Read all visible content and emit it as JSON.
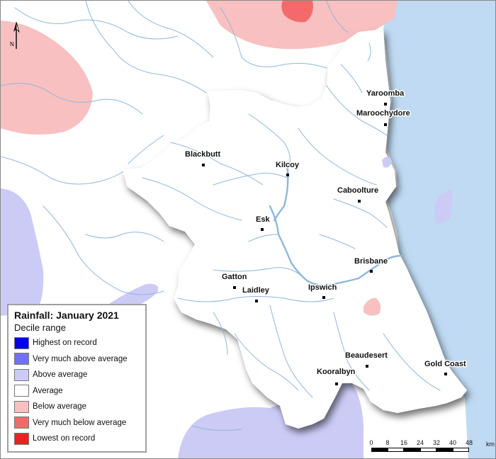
{
  "legend": {
    "title": "Rainfall: January 2021",
    "subtitle": "Decile range",
    "items": [
      {
        "label": "Highest on record",
        "color": "#0000ee"
      },
      {
        "label": "Very much above average",
        "color": "#7070ff"
      },
      {
        "label": "Above average",
        "color": "#cbcbf6"
      },
      {
        "label": "Average",
        "color": "#ffffff"
      },
      {
        "label": "Below average",
        "color": "#f8c0c0"
      },
      {
        "label": "Very much below average",
        "color": "#f46a6a"
      },
      {
        "label": "Lowest on record",
        "color": "#ee2020"
      }
    ]
  },
  "north_arrow": {
    "label": "N"
  },
  "towns": [
    {
      "name": "Yaroomba"
    },
    {
      "name": "Maroochydore"
    },
    {
      "name": "Blackbutt"
    },
    {
      "name": "Kilcoy"
    },
    {
      "name": "Caboolture"
    },
    {
      "name": "Esk"
    },
    {
      "name": "Brisbane"
    },
    {
      "name": "Gatton"
    },
    {
      "name": "Laidley"
    },
    {
      "name": "Ipswich"
    },
    {
      "name": "Beaudesert"
    },
    {
      "name": "Gold Coast"
    },
    {
      "name": "Kooralbyn"
    }
  ],
  "scale": {
    "unit": "km",
    "ticks": [
      "0",
      "8",
      "16",
      "24",
      "32",
      "40",
      "48"
    ]
  },
  "colors": {
    "ocean": "#bfdaf2",
    "river": "#8fb7d9",
    "region_fill": "#ffffff",
    "outside_fill": "#ffffff"
  }
}
